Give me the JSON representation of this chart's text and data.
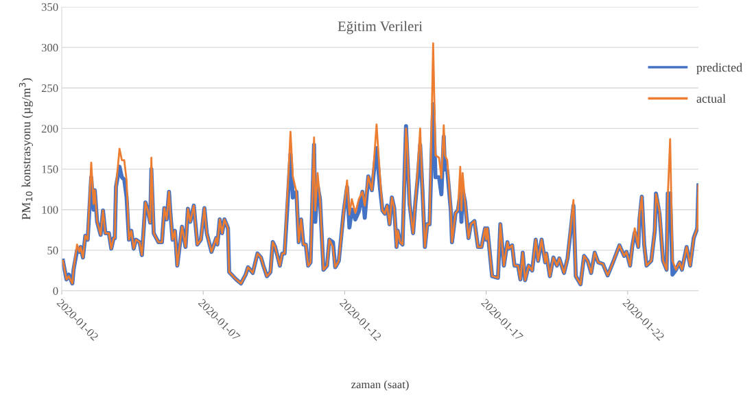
{
  "chart_data": {
    "type": "line",
    "title": "Eğitim Verileri",
    "xlabel": "zaman (saat)",
    "ylabel": "PM$_{10}$ konstrasyonu (µg/m$^{3}$)",
    "x": [
      "2020-01-02T01:00",
      "2020-01-02T04:00",
      "2020-01-02T06:00",
      "2020-01-02T09:00",
      "2020-01-02T10:00",
      "2020-01-02T13:00",
      "2020-01-02T15:00",
      "2020-01-02T16:00",
      "2020-01-02T18:00",
      "2020-01-02T20:00",
      "2020-01-02T22:00",
      "2020-01-03T01:00",
      "2020-01-03T03:00",
      "2020-01-03T04:00",
      "2020-01-03T06:00",
      "2020-01-03T09:00",
      "2020-01-03T11:00",
      "2020-01-03T13:00",
      "2020-01-03T16:00",
      "2020-01-03T18:00",
      "2020-01-03T20:00",
      "2020-01-03T21:00",
      "2020-01-03T22:00",
      "2020-01-04T01:00",
      "2020-01-04T03:00",
      "2020-01-04T05:00",
      "2020-01-04T07:00",
      "2020-01-04T09:00",
      "2020-01-04T11:00",
      "2020-01-04T13:00",
      "2020-01-04T15:00",
      "2020-01-04T18:00",
      "2020-01-04T20:00",
      "2020-01-04T23:00",
      "2020-01-05T01:00",
      "2020-01-05T03:00",
      "2020-01-05T04:00",
      "2020-01-05T06:00",
      "2020-01-05T10:00",
      "2020-01-05T13:00",
      "2020-01-05T15:00",
      "2020-01-05T17:00",
      "2020-01-05T19:00",
      "2020-01-05T20:00",
      "2020-01-05T22:00",
      "2020-01-06T00:00",
      "2020-01-06T02:00",
      "2020-01-06T06:00",
      "2020-01-06T09:00",
      "2020-01-06T11:00",
      "2020-01-06T13:00",
      "2020-01-06T16:00",
      "2020-01-06T19:00",
      "2020-01-06T22:00",
      "2020-01-07T01:00",
      "2020-01-07T03:00",
      "2020-01-07T07:00",
      "2020-01-07T11:00",
      "2020-01-07T12:00",
      "2020-01-07T14:00",
      "2020-01-07T16:00",
      "2020-01-07T18:00",
      "2020-01-07T21:00",
      "2020-01-07T22:00",
      "2020-01-08T04:00",
      "2020-01-08T08:00",
      "2020-01-08T12:00",
      "2020-01-08T14:00",
      "2020-01-08T18:00",
      "2020-01-08T22:00",
      "2020-01-09T01:00",
      "2020-01-09T03:00",
      "2020-01-09T06:00",
      "2020-01-09T09:00",
      "2020-01-09T11:00",
      "2020-01-09T13:00",
      "2020-01-09T17:00",
      "2020-01-09T19:00",
      "2020-01-09T21:00",
      "2020-01-10T02:00",
      "2020-01-10T04:00",
      "2020-01-10T07:00",
      "2020-01-10T09:00",
      "2020-01-10T11:00",
      "2020-01-10T13:00",
      "2020-01-10T15:00",
      "2020-01-10T17:00",
      "2020-01-10T19:00",
      "2020-01-10T22:00",
      "2020-01-10T23:00",
      "2020-01-11T01:00",
      "2020-01-11T03:00",
      "2020-01-11T06:00",
      "2020-01-11T09:00",
      "2020-01-11T11:00",
      "2020-01-11T14:00",
      "2020-01-11T16:00",
      "2020-01-11T19:00",
      "2020-01-11T23:00",
      "2020-01-12T02:00",
      "2020-01-12T04:00",
      "2020-01-12T06:00",
      "2020-01-12T09:00",
      "2020-01-12T12:00",
      "2020-01-12T15:00",
      "2020-01-12T17:00",
      "2020-01-12T20:00",
      "2020-01-12T23:00",
      "2020-01-13T01:00",
      "2020-01-13T03:00",
      "2020-01-13T06:00",
      "2020-01-13T08:00",
      "2020-01-13T10:00",
      "2020-01-13T12:00",
      "2020-01-13T14:00",
      "2020-01-13T16:00",
      "2020-01-13T18:00",
      "2020-01-13T20:00",
      "2020-01-13T21:00",
      "2020-01-13T23:00",
      "2020-01-14T01:00",
      "2020-01-14T04:00",
      "2020-01-14T05:00",
      "2020-01-14T07:00",
      "2020-01-14T10:00",
      "2020-01-14T12:00",
      "2020-01-14T14:00",
      "2020-01-14T16:00",
      "2020-01-14T18:00",
      "2020-01-14T20:00",
      "2020-01-14T22:00",
      "2020-01-15T00:00",
      "2020-01-15T03:00",
      "2020-01-15T05:00",
      "2020-01-15T08:00",
      "2020-01-15T10:00",
      "2020-01-15T12:00",
      "2020-01-15T13:00",
      "2020-01-15T15:00",
      "2020-01-15T18:00",
      "2020-01-15T19:00",
      "2020-01-15T22:00",
      "2020-01-16T00:00",
      "2020-01-16T02:00",
      "2020-01-16T03:00",
      "2020-01-16T04:00",
      "2020-01-16T06:00",
      "2020-01-16T09:00",
      "2020-01-16T11:00",
      "2020-01-16T14:00",
      "2020-01-16T17:00",
      "2020-01-16T20:00",
      "2020-01-16T23:00",
      "2020-01-17T00:00",
      "2020-01-17T01:00",
      "2020-01-17T05:00",
      "2020-01-17T10:00",
      "2020-01-17T12:00",
      "2020-01-17T15:00",
      "2020-01-17T18:00",
      "2020-01-17T19:00",
      "2020-01-17T22:00",
      "2020-01-18T00:00",
      "2020-01-18T03:00",
      "2020-01-18T05:00",
      "2020-01-18T07:00",
      "2020-01-18T09:00",
      "2020-01-18T12:00",
      "2020-01-18T15:00",
      "2020-01-18T18:00",
      "2020-01-18T20:00",
      "2020-01-18T23:00",
      "2020-01-19T02:00",
      "2020-01-19T03:00",
      "2020-01-19T06:00",
      "2020-01-19T09:00",
      "2020-01-19T12:00",
      "2020-01-19T14:00",
      "2020-01-19T18:00",
      "2020-01-19T21:00",
      "2020-01-20T02:00",
      "2020-01-20T04:00",
      "2020-01-20T08:00",
      "2020-01-20T11:00",
      "2020-01-20T14:00",
      "2020-01-20T17:00",
      "2020-01-20T20:00",
      "2020-01-20T23:00",
      "2020-01-21T03:00",
      "2020-01-21T07:00",
      "2020-01-21T11:00",
      "2020-01-21T17:00",
      "2020-01-21T21:00",
      "2020-01-21T23:00",
      "2020-01-22T02:00",
      "2020-01-22T04:00",
      "2020-01-22T06:00",
      "2020-01-22T09:00",
      "2020-01-22T10:00",
      "2020-01-22T12:00",
      "2020-01-22T14:00",
      "2020-01-22T16:00",
      "2020-01-22T20:00",
      "2020-01-22T23:00",
      "2020-01-23T00:00",
      "2020-01-23T03:00",
      "2020-01-23T06:00",
      "2020-01-23T09:00",
      "2020-01-23T10:00",
      "2020-01-23T12:00",
      "2020-01-23T14:00",
      "2020-01-23T17:00",
      "2020-01-23T20:00",
      "2020-01-23T22:00",
      "2020-01-24T02:00",
      "2020-01-24T05:00",
      "2020-01-24T08:00",
      "2020-01-24T11:00",
      "2020-01-24T12:00"
    ],
    "series": [
      {
        "name": "predicted",
        "color": "#4472c4",
        "values": [
          37,
          14,
          20,
          9,
          26,
          50,
          48,
          54,
          41,
          68,
          63,
          140,
          100,
          124,
          85,
          69,
          99,
          71,
          71,
          52,
          65,
          65,
          128,
          153,
          140,
          137,
          115,
          63,
          74,
          52,
          63,
          60,
          44,
          109,
          99,
          84,
          150,
          71,
          60,
          60,
          102,
          88,
          122,
          99,
          63,
          74,
          31,
          79,
          54,
          101,
          85,
          105,
          57,
          63,
          102,
          71,
          48,
          65,
          57,
          88,
          71,
          88,
          77,
          23,
          14,
          9,
          20,
          29,
          22,
          46,
          41,
          31,
          18,
          23,
          60,
          54,
          31,
          46,
          46,
          168,
          115,
          122,
          60,
          88,
          57,
          57,
          31,
          35,
          180,
          85,
          130,
          113,
          26,
          31,
          63,
          60,
          29,
          37,
          96,
          128,
          78,
          100,
          88,
          98,
          122,
          90,
          141,
          124,
          150,
          176,
          125,
          99,
          95,
          105,
          82,
          115,
          102,
          54,
          74,
          60,
          57,
          203,
          170,
          107,
          71,
          110,
          140,
          180,
          122,
          54,
          82,
          82,
          230,
          140,
          140,
          119,
          190,
          150,
          148,
          99,
          60,
          96,
          99,
          120,
          85,
          125,
          110,
          65,
          82,
          86,
          54,
          54,
          77,
          63,
          77,
          18,
          16,
          82,
          31,
          60,
          52,
          56,
          31,
          31,
          14,
          47,
          13,
          31,
          25,
          63,
          37,
          63,
          35,
          46,
          18,
          41,
          31,
          40,
          22,
          40,
          105,
          18,
          8,
          43,
          37,
          22,
          47,
          35,
          33,
          19,
          33,
          56,
          43,
          48,
          31,
          56,
          72,
          54,
          88,
          116,
          57,
          31,
          37,
          74,
          120,
          95,
          37,
          26,
          120,
          120,
          20,
          26,
          35,
          26,
          54,
          31,
          65,
          77,
          130
        ]
      },
      {
        "name": "actual",
        "color": "#ed7d31",
        "values": [
          37,
          14,
          18,
          9,
          26,
          57,
          48,
          54,
          41,
          68,
          63,
          158,
          107,
          124,
          85,
          69,
          99,
          71,
          71,
          52,
          65,
          65,
          128,
          175,
          161,
          161,
          136,
          63,
          74,
          52,
          63,
          60,
          44,
          109,
          99,
          84,
          164,
          71,
          60,
          60,
          102,
          88,
          122,
          99,
          63,
          74,
          31,
          79,
          54,
          101,
          85,
          105,
          57,
          63,
          102,
          71,
          48,
          65,
          57,
          88,
          71,
          88,
          77,
          23,
          14,
          9,
          20,
          29,
          22,
          46,
          41,
          31,
          18,
          23,
          60,
          54,
          31,
          46,
          46,
          196,
          141,
          122,
          60,
          88,
          57,
          57,
          31,
          35,
          189,
          99,
          145,
          113,
          26,
          31,
          63,
          54,
          29,
          37,
          96,
          136,
          94,
          113,
          96,
          113,
          122,
          105,
          141,
          124,
          164,
          205,
          139,
          99,
          95,
          105,
          82,
          115,
          102,
          54,
          74,
          60,
          57,
          200,
          181,
          107,
          71,
          110,
          153,
          200,
          122,
          54,
          82,
          82,
          305,
          167,
          164,
          139,
          204,
          167,
          161,
          99,
          60,
          96,
          99,
          153,
          99,
          145,
          110,
          65,
          82,
          86,
          54,
          54,
          77,
          63,
          77,
          18,
          16,
          82,
          31,
          60,
          52,
          56,
          31,
          31,
          14,
          47,
          13,
          31,
          25,
          63,
          37,
          63,
          35,
          46,
          18,
          41,
          31,
          40,
          22,
          40,
          112,
          18,
          8,
          43,
          37,
          22,
          47,
          35,
          33,
          19,
          33,
          56,
          43,
          48,
          31,
          56,
          77,
          54,
          94,
          116,
          57,
          31,
          37,
          74,
          119,
          99,
          37,
          26,
          116,
          187,
          37,
          26,
          35,
          26,
          54,
          31,
          65,
          77,
          130
        ]
      }
    ],
    "xlim": [
      "2020-01-02T00:00",
      "2020-01-24T12:00"
    ],
    "xticks": [
      {
        "value": "2020-01-02",
        "label": "2020-01-02"
      },
      {
        "value": "2020-01-07",
        "label": "2020-01-07"
      },
      {
        "value": "2020-01-12",
        "label": "2020-01-12"
      },
      {
        "value": "2020-01-17",
        "label": "2020-01-17"
      },
      {
        "value": "2020-01-22",
        "label": "2020-01-22"
      }
    ],
    "ylim": [
      0,
      350
    ],
    "yticks": [
      0,
      50,
      100,
      150,
      200,
      250,
      300,
      350
    ],
    "grid": "y",
    "legend": "right",
    "marker": "none",
    "line_style": "solid"
  }
}
